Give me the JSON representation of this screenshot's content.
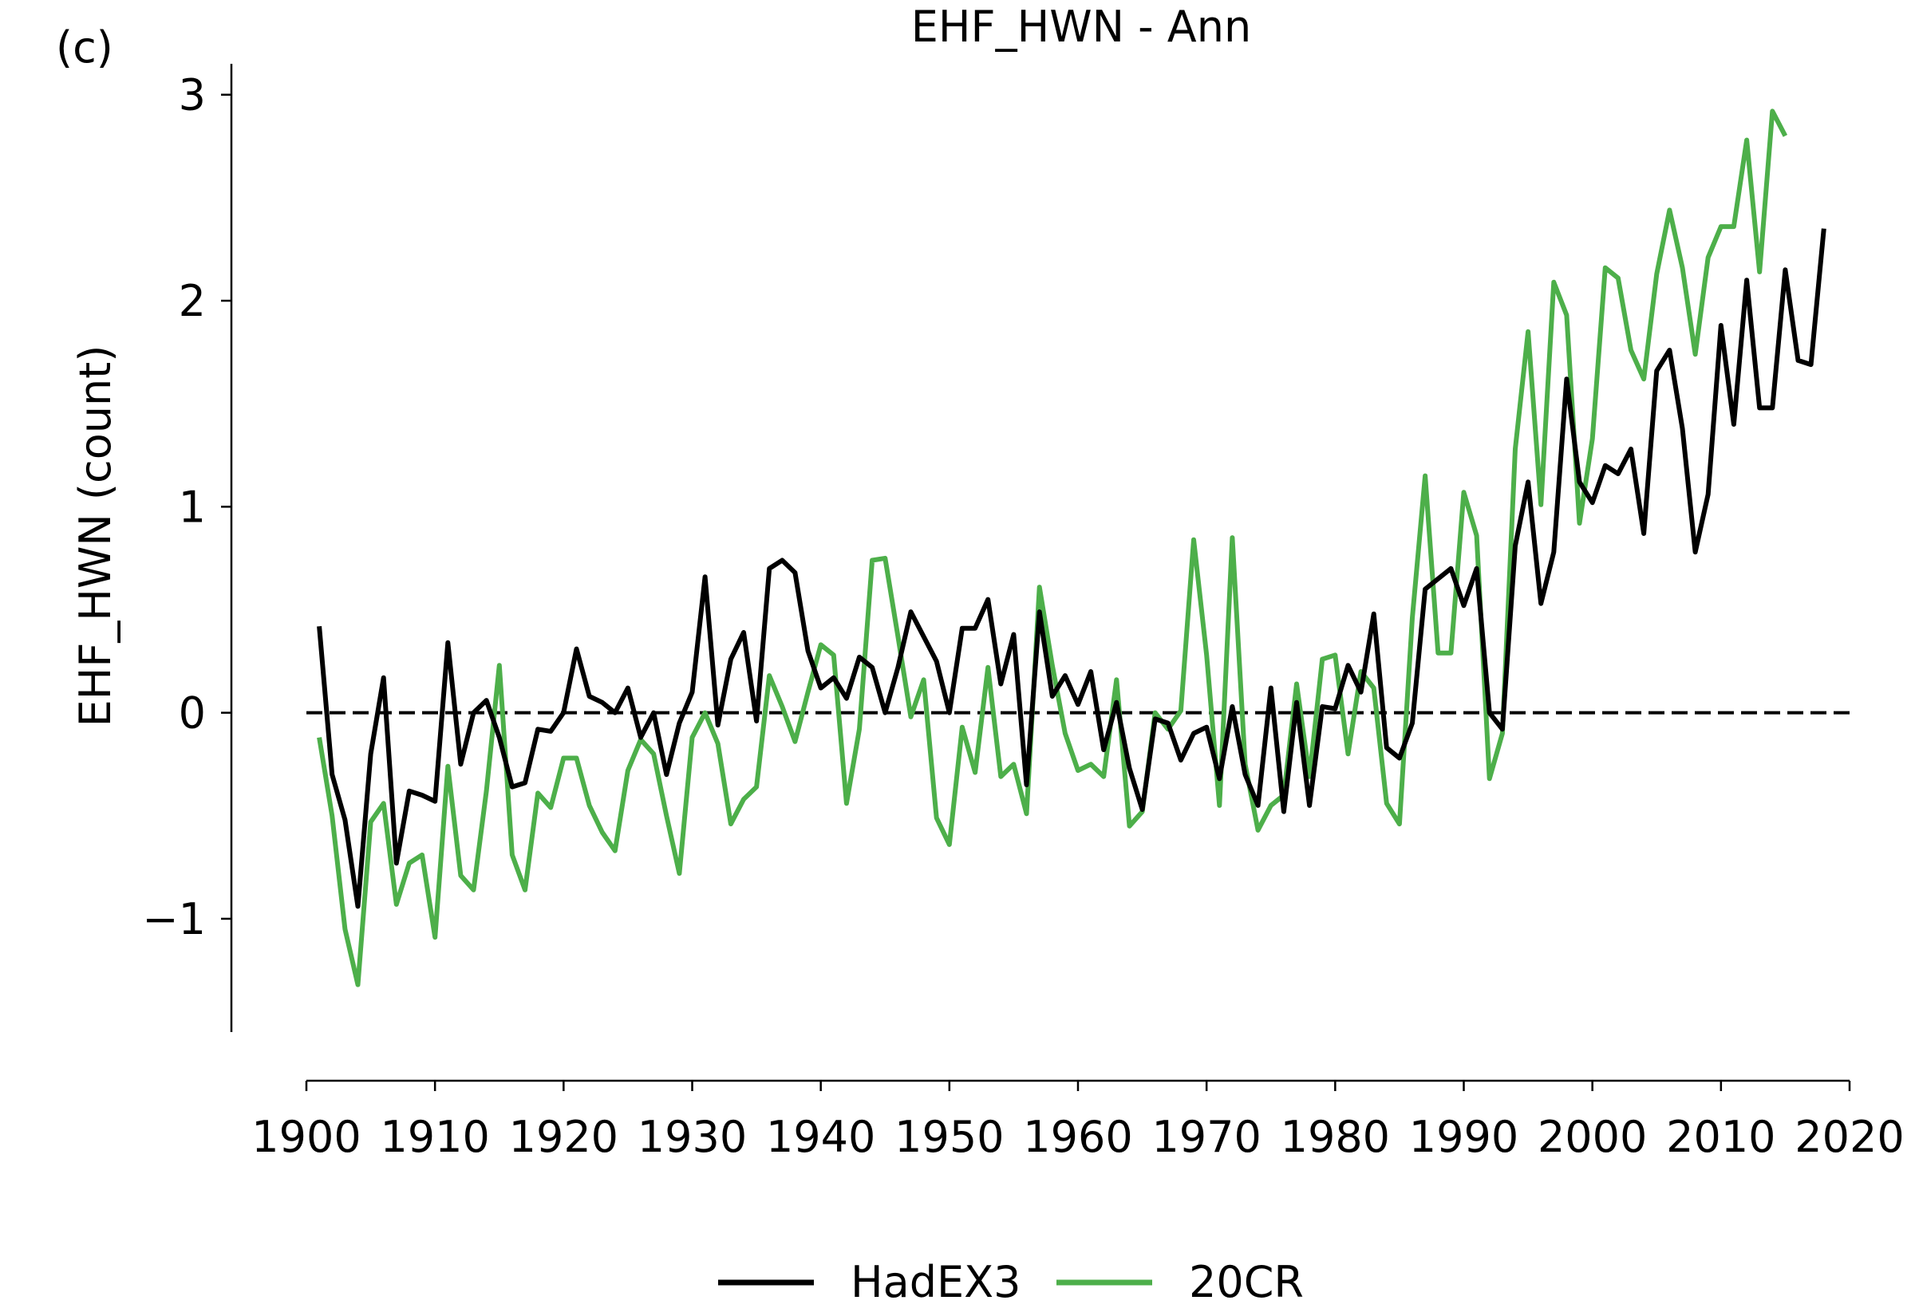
{
  "chart_data": {
    "type": "line",
    "panel_label": "(c)",
    "title": "EHF_HWN - Ann",
    "xlabel": "",
    "ylabel": "EHF_HWN (count)",
    "xlim": [
      1900,
      2020
    ],
    "ylim": [
      -1.55,
      3.15
    ],
    "x_ticks": [
      1900,
      1910,
      1920,
      1930,
      1940,
      1950,
      1960,
      1970,
      1980,
      1990,
      2000,
      2010,
      2020
    ],
    "y_ticks": [
      -1,
      0,
      1,
      2,
      3
    ],
    "y_tick_labels": [
      "−1",
      "0",
      "1",
      "2",
      "3"
    ],
    "reference_line": {
      "y": 0,
      "style": "dashed",
      "color": "#000000"
    },
    "grid": false,
    "legend_position": "bottom-center",
    "series": [
      {
        "name": "HadEX3",
        "color": "#000000",
        "x_start": 1901,
        "values": [
          0.42,
          -0.3,
          -0.52,
          -0.94,
          -0.2,
          0.17,
          -0.73,
          -0.38,
          -0.4,
          -0.43,
          0.34,
          -0.25,
          0.0,
          0.06,
          -0.12,
          -0.36,
          -0.34,
          -0.08,
          -0.09,
          0.0,
          0.31,
          0.08,
          0.05,
          0.0,
          0.12,
          -0.12,
          0.0,
          -0.3,
          -0.05,
          0.1,
          0.66,
          -0.06,
          0.26,
          0.39,
          -0.04,
          0.7,
          0.74,
          0.68,
          0.3,
          0.12,
          0.17,
          0.07,
          0.27,
          0.22,
          0.0,
          0.22,
          0.49,
          0.37,
          0.25,
          0.0,
          0.41,
          0.41,
          0.55,
          0.14,
          0.38,
          -0.35,
          0.49,
          0.08,
          0.18,
          0.04,
          0.2,
          -0.18,
          0.05,
          -0.27,
          -0.47,
          -0.03,
          -0.05,
          -0.23,
          -0.1,
          -0.07,
          -0.32,
          0.03,
          -0.3,
          -0.45,
          0.12,
          -0.48,
          0.05,
          -0.45,
          0.03,
          0.02,
          0.23,
          0.1,
          0.48,
          -0.17,
          -0.22,
          -0.05,
          0.6,
          0.65,
          0.7,
          0.52,
          0.7,
          0.0,
          -0.08,
          0.81,
          1.12,
          0.53,
          0.78,
          1.62,
          1.12,
          1.02,
          1.2,
          1.16,
          1.28,
          0.87,
          1.66,
          1.76,
          1.38,
          0.78,
          1.06,
          1.88,
          1.4,
          2.1,
          1.48,
          1.48,
          2.15,
          1.71,
          1.69,
          2.35
        ]
      },
      {
        "name": "20CR",
        "color": "#4daf4a",
        "x_start": 1901,
        "values": [
          -0.12,
          -0.5,
          -1.05,
          -1.32,
          -0.53,
          -0.44,
          -0.93,
          -0.73,
          -0.69,
          -1.09,
          -0.26,
          -0.79,
          -0.86,
          -0.38,
          0.23,
          -0.69,
          -0.86,
          -0.39,
          -0.46,
          -0.22,
          -0.22,
          -0.45,
          -0.58,
          -0.67,
          -0.28,
          -0.13,
          -0.2,
          -0.5,
          -0.78,
          -0.12,
          0.0,
          -0.15,
          -0.54,
          -0.42,
          -0.36,
          0.18,
          0.03,
          -0.14,
          0.1,
          0.33,
          0.28,
          -0.44,
          -0.08,
          0.74,
          0.75,
          0.37,
          -0.02,
          0.16,
          -0.51,
          -0.64,
          -0.07,
          -0.29,
          0.22,
          -0.31,
          -0.25,
          -0.49,
          0.61,
          0.23,
          -0.1,
          -0.28,
          -0.25,
          -0.31,
          0.16,
          -0.55,
          -0.48,
          0.0,
          -0.08,
          0.01,
          0.84,
          0.28,
          -0.45,
          0.85,
          -0.25,
          -0.57,
          -0.45,
          -0.4,
          0.14,
          -0.31,
          0.26,
          0.28,
          -0.2,
          0.2,
          0.12,
          -0.44,
          -0.54,
          0.46,
          1.15,
          0.29,
          0.29,
          1.07,
          0.86,
          -0.32,
          -0.1,
          1.28,
          1.85,
          1.01,
          2.09,
          1.93,
          0.92,
          1.33,
          2.16,
          2.11,
          1.76,
          1.62,
          2.13,
          2.44,
          2.16,
          1.74,
          2.21,
          2.36,
          2.36,
          2.78,
          2.14,
          2.92,
          2.8
        ]
      }
    ]
  }
}
